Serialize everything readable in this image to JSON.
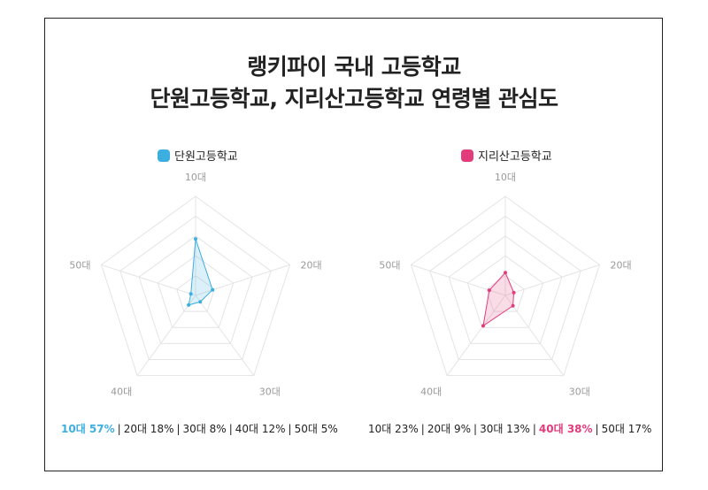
{
  "title_line1": "랭키파이 국내 고등학교",
  "title_line2": "단원고등학교, 지리산고등학교 연령별 관심도",
  "chart_data": [
    {
      "type": "radar",
      "name": "단원고등학교",
      "color": "#3daee0",
      "categories": [
        "10대",
        "20대",
        "30대",
        "40대",
        "50대"
      ],
      "values": [
        57,
        18,
        8,
        12,
        5
      ],
      "max": 100,
      "highlight_index": 0,
      "stats": [
        "10대 57%",
        "20대 18%",
        "30대 8%",
        "40대 12%",
        "50대 5%"
      ]
    },
    {
      "type": "radar",
      "name": "지리산고등학교",
      "color": "#e23c7c",
      "categories": [
        "10대",
        "20대",
        "30대",
        "40대",
        "50대"
      ],
      "values": [
        23,
        9,
        13,
        38,
        17
      ],
      "max": 100,
      "highlight_index": 3,
      "stats": [
        "10대 23%",
        "20대 9%",
        "30대 13%",
        "40대 38%",
        "50대 17%"
      ]
    }
  ]
}
